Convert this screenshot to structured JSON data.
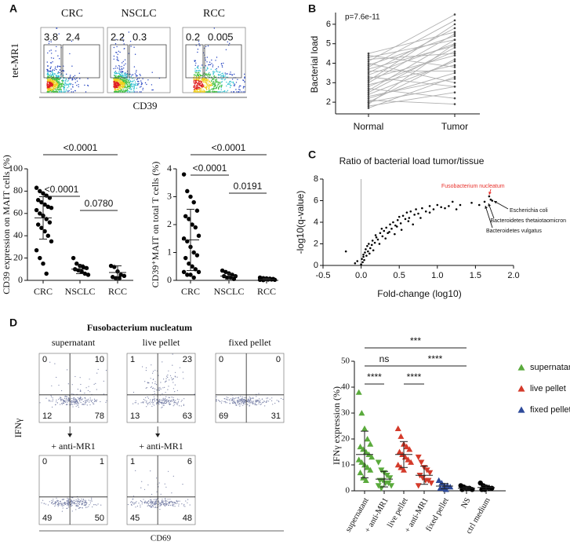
{
  "panel_labels": [
    "A",
    "B",
    "C",
    "D"
  ],
  "flow_A": {
    "titles": [
      "CRC",
      "NSCLC",
      "RCC"
    ],
    "gates": [
      [
        3.8,
        2.4
      ],
      [
        2.2,
        0.3
      ],
      [
        0.2,
        0.005
      ]
    ],
    "y_label": "tet-MR1",
    "x_label": "CD39"
  },
  "flow_D": {
    "title": "Fusobacterium nucleatum",
    "titles": [
      "supernatant",
      "live pellet",
      "fixed pellet"
    ],
    "treatment": [
      "+ anti-MR1",
      "+ anti-MR1"
    ],
    "quadrants": [
      [
        0,
        10,
        12,
        78
      ],
      [
        1,
        23,
        13,
        63
      ],
      [
        0,
        0,
        69,
        31
      ],
      [
        0,
        1,
        49,
        50
      ],
      [
        1,
        6,
        45,
        48
      ]
    ],
    "y_label": "IFNγ",
    "x_label": "CD69"
  },
  "chart_data": [
    {
      "type": "dot",
      "y_label": "CD39 expression on MAIT cells (%)",
      "ylim": [
        0,
        100
      ],
      "yticks": [
        0,
        20,
        40,
        60,
        80,
        100
      ],
      "annotations": [
        "<0.0001",
        "<0.0001",
        "0.0780"
      ],
      "groups": [
        {
          "name": "CRC",
          "color": "#000000",
          "marker": "circle",
          "values": [
            83,
            80,
            78,
            76,
            74,
            72,
            70,
            68,
            66,
            65,
            63,
            60,
            58,
            55,
            52,
            50,
            47,
            44,
            40,
            35,
            27,
            20,
            15,
            6
          ],
          "mean": 56,
          "sd": 19
        },
        {
          "name": "NSCLC",
          "color": "#000000",
          "marker": "circle",
          "values": [
            20,
            15,
            13,
            12,
            11,
            10,
            9,
            8,
            6,
            5
          ],
          "mean": 10,
          "sd": 4
        },
        {
          "name": "RCC",
          "color": "#000000",
          "marker": "circle",
          "values": [
            13,
            12,
            8,
            5,
            4,
            3,
            2,
            2
          ],
          "mean": 7,
          "sd": 6
        }
      ]
    },
    {
      "type": "dot",
      "y_label": "CD39⁺MAIT on total T cells (%)",
      "ylim": [
        0,
        4
      ],
      "yticks": [
        0,
        1,
        2,
        3,
        4
      ],
      "annotations": [
        "<0.0001",
        "<0.0001",
        "0.0191"
      ],
      "groups": [
        {
          "name": "CRC",
          "color": "#000000",
          "marker": "circle",
          "values": [
            3.8,
            3.2,
            3.0,
            2.8,
            2.5,
            2.3,
            2.2,
            2.0,
            1.9,
            1.6,
            1.5,
            1.4,
            1.2,
            1.0,
            0.9,
            0.8,
            0.6,
            0.5,
            0.4,
            0.3,
            0.3,
            0.2,
            0.2,
            0.1
          ],
          "mean": 1.45,
          "sd": 1.1
        },
        {
          "name": "NSCLC",
          "color": "#000000",
          "marker": "circle",
          "values": [
            0.35,
            0.3,
            0.25,
            0.2,
            0.15,
            0.15,
            0.1,
            0.1,
            0.05
          ],
          "mean": 0.15,
          "sd": 0.1
        },
        {
          "name": "RCC",
          "color": "#000000",
          "marker": "circle",
          "values": [
            0.1,
            0.08,
            0.07,
            0.06,
            0.05,
            0.05,
            0.04,
            0.03,
            0.03,
            0.02,
            0.02,
            0.01
          ],
          "mean": 0.04,
          "sd": 0.03
        }
      ]
    },
    {
      "type": "paired",
      "y_label": "Bacterial load",
      "annotation": "p=7.6e-11",
      "categories": [
        "Normal",
        "Tumor"
      ],
      "ylim": [
        1.4,
        6.6
      ],
      "yticks": [
        2,
        3,
        4,
        5,
        6
      ],
      "color": "#b0b0b0",
      "values": [
        [
          2.0,
          4.2
        ],
        [
          2.2,
          3.5
        ],
        [
          1.9,
          5.0
        ],
        [
          2.5,
          4.8
        ],
        [
          3.0,
          5.5
        ],
        [
          4.3,
          5.2
        ],
        [
          4.4,
          3.8
        ],
        [
          3.8,
          6.2
        ],
        [
          4.0,
          3.0
        ],
        [
          2.8,
          4.6
        ],
        [
          3.5,
          5.8
        ],
        [
          2.3,
          3.2
        ],
        [
          1.8,
          2.5
        ],
        [
          3.2,
          4.4
        ],
        [
          2.6,
          5.2
        ],
        [
          3.7,
          4.9
        ],
        [
          2.1,
          1.9
        ],
        [
          4.5,
          5.6
        ],
        [
          3.3,
          2.8
        ],
        [
          2.9,
          3.9
        ],
        [
          4.1,
          6.5
        ],
        [
          2.4,
          4.1
        ],
        [
          3.6,
          3.6
        ],
        [
          1.7,
          3.3
        ],
        [
          3.9,
          5.4
        ],
        [
          2.7,
          2.2
        ],
        [
          3.1,
          6.0
        ],
        [
          2.0,
          2.8
        ],
        [
          4.2,
          4.5
        ],
        [
          3.4,
          5.0
        ]
      ]
    },
    {
      "type": "scatter",
      "title": "Ratio of bacterial load tumor/tissue",
      "x_label": "Fold-change (log10)",
      "y_label": "-log10(q-value)",
      "xlim": [
        -0.5,
        2
      ],
      "xticks": [
        -0.5,
        {
          "value": 0,
          "label": "0.0"
        },
        0.5,
        {
          "value": 1,
          "label": "1.0"
        },
        1.5,
        {
          "value": 2,
          "label": "2.0"
        }
      ],
      "ylim": [
        0,
        8
      ],
      "yticks": [
        0,
        2,
        4,
        6,
        8
      ],
      "color": "#000000",
      "highlight_color": "#e8302a",
      "labels": [
        "Fusobacterium nucleatum",
        "Escherichia coli",
        "Bacteroidetes thetaiotaomicron",
        "Bacteroidetes vulgatus"
      ],
      "x": [
        0.02,
        0.03,
        0.05,
        0.0,
        0.04,
        0.06,
        0.08,
        0.1,
        0.12,
        0.15,
        0.18,
        0.2,
        0.22,
        0.25,
        0.28,
        0.3,
        0.33,
        0.35,
        0.38,
        0.4,
        0.42,
        0.45,
        0.48,
        0.5,
        0.52,
        0.55,
        0.58,
        0.6,
        0.63,
        0.65,
        0.7,
        0.72,
        0.75,
        0.8,
        0.85,
        0.9,
        0.95,
        1.0,
        1.05,
        1.1,
        1.2,
        1.3,
        1.45,
        1.55,
        1.62,
        1.68,
        1.7,
        1.72,
        -0.05,
        -0.08,
        0.01,
        0.03,
        0.07,
        0.09,
        0.11,
        0.14,
        0.16,
        0.19,
        0.24,
        0.27,
        0.32,
        0.37,
        0.44,
        0.47,
        0.53,
        0.62,
        0.68,
        -0.2,
        0.9,
        0.78,
        1.15,
        1.25
      ],
      "y": [
        0.3,
        0.8,
        1.2,
        0.1,
        0.5,
        1.5,
        1.8,
        2.0,
        1.6,
        2.3,
        2.1,
        2.6,
        2.4,
        3.0,
        2.7,
        3.2,
        3.5,
        3.0,
        3.8,
        3.4,
        4.0,
        3.7,
        4.2,
        4.5,
        3.9,
        4.6,
        4.3,
        4.9,
        4.4,
        5.0,
        4.7,
        5.2,
        4.8,
        5.3,
        5.0,
        5.5,
        5.2,
        5.6,
        5.4,
        5.3,
        5.9,
        5.6,
        5.8,
        5.6,
        5.9,
        6.4,
        6.1,
        6.0,
        0.4,
        0.2,
        0.6,
        1.0,
        0.9,
        1.3,
        1.1,
        1.9,
        1.4,
        2.8,
        2.0,
        3.4,
        2.5,
        3.1,
        2.9,
        3.6,
        3.3,
        4.1,
        3.8,
        1.3,
        4.9,
        4.4,
        5.5,
        5.2
      ]
    },
    {
      "type": "dot",
      "y_label": "IFNγ expression (%)",
      "ylim": [
        0,
        50
      ],
      "yticks": [
        0,
        10,
        20,
        30,
        40,
        50
      ],
      "annotations": [
        "***",
        "ns",
        "****",
        "****",
        "****"
      ],
      "legend": [
        {
          "name": "supernatant",
          "color": "#5aaa3c"
        },
        {
          "name": "live pellet",
          "color": "#d43a2a"
        },
        {
          "name": "fixed pellet",
          "color": "#2e4a9a"
        }
      ],
      "groups": [
        {
          "name": "supernatant",
          "color": "#5aaa3c",
          "marker": "triangle-up",
          "values": [
            38,
            30,
            24,
            20,
            18,
            17,
            16,
            15,
            14,
            13,
            12,
            11,
            10,
            9,
            8,
            7,
            5,
            4
          ],
          "mean": 14,
          "sd": 9
        },
        {
          "name": "+ anti-MR1",
          "color": "#5aaa3c",
          "marker": "triangle-down",
          "values": [
            11,
            8,
            7,
            6,
            5,
            4,
            4,
            3,
            3,
            2,
            2,
            1
          ],
          "mean": 4.5,
          "sd": 3
        },
        {
          "name": "live pellet",
          "color": "#d43a2a",
          "marker": "triangle-up",
          "values": [
            24,
            21,
            18,
            17,
            16,
            15,
            14,
            13,
            12,
            11,
            10,
            9,
            8
          ],
          "mean": 14,
          "sd": 5
        },
        {
          "name": "+ anti-MR1",
          "color": "#d43a2a",
          "marker": "triangle-down",
          "values": [
            13,
            11,
            9,
            8,
            7,
            6,
            5,
            4,
            4,
            3,
            2
          ],
          "mean": 6,
          "sd": 3.5
        },
        {
          "name": "fixed pellet",
          "color": "#2e4a9a",
          "marker": "triangle-up",
          "values": [
            4,
            3,
            2,
            2,
            1.5,
            1,
            1,
            0.5
          ],
          "mean": 1.8,
          "sd": 1
        },
        {
          "name": "NS",
          "color": "#000000",
          "marker": "circle",
          "values": [
            2,
            1.5,
            1,
            1,
            0.5,
            0.5
          ],
          "mean": 1,
          "sd": 0.5
        },
        {
          "name": "ctrl medium",
          "color": "#000000",
          "marker": "circle",
          "values": [
            3,
            2,
            1.5,
            1,
            1,
            0.5,
            0.5
          ],
          "mean": 1.3,
          "sd": 0.8
        }
      ]
    }
  ]
}
